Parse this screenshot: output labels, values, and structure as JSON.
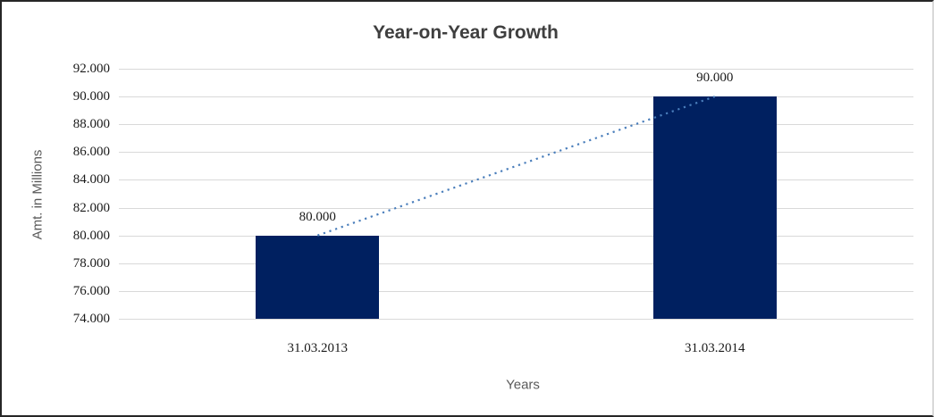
{
  "frame": {
    "background": "#ffffff",
    "border_dark": "#262626",
    "border_light": "#d9d9d9"
  },
  "chart_data": {
    "type": "bar",
    "title": "Year-on-Year Growth",
    "xlabel": "Years",
    "ylabel": "Amt. in Millions",
    "categories": [
      "31.03.2013",
      "31.03.2014"
    ],
    "values": [
      80000,
      90000
    ],
    "data_labels": [
      "80.000",
      "90.000"
    ],
    "ylim": [
      74000,
      92000
    ],
    "ytick_step": 2000,
    "ytick_labels": [
      "74.000",
      "76.000",
      "78.000",
      "80.000",
      "82.000",
      "84.000",
      "86.000",
      "88.000",
      "90.000",
      "92.000"
    ],
    "grid": "horizontal",
    "legend_position": "none",
    "bar_color": "#002060",
    "gridline_color": "#d9d9d9",
    "trendline": {
      "style": "dotted",
      "color": "#4a7ebb",
      "from_value": 80000,
      "to_value": 90000
    }
  }
}
